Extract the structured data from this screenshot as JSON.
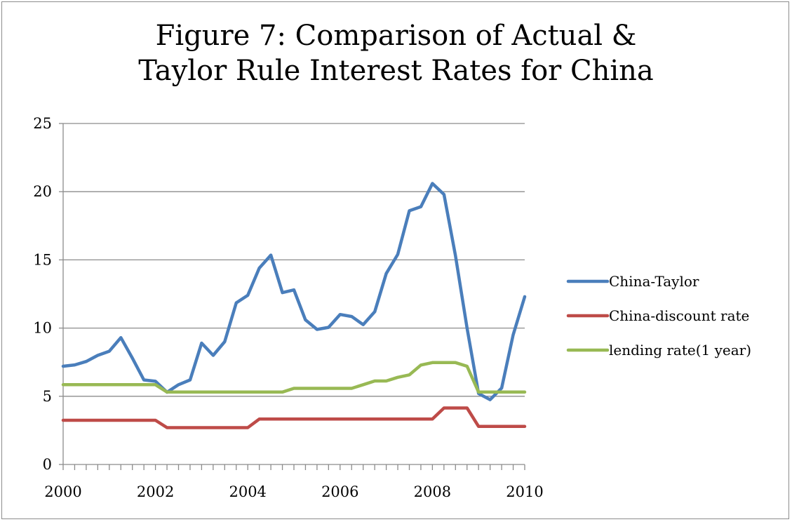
{
  "chart_data": {
    "type": "line",
    "title_line1": "Figure 7: Comparison of Actual &",
    "title_line2": "Taylor Rule Interest Rates for China",
    "xlabel": "",
    "ylabel": "",
    "xlim": [
      2000,
      2010
    ],
    "ylim": [
      0,
      25
    ],
    "x_ticks": [
      "2000",
      "2002",
      "2004",
      "2006",
      "2008",
      "2010"
    ],
    "y_ticks": [
      "0",
      "5",
      "10",
      "15",
      "20",
      "25"
    ],
    "grid": "horizontal",
    "legend_position": "right",
    "x": [
      2000.0,
      2000.25,
      2000.5,
      2000.75,
      2001.0,
      2001.25,
      2001.5,
      2001.75,
      2002.0,
      2002.25,
      2002.5,
      2002.75,
      2003.0,
      2003.25,
      2003.5,
      2003.75,
      2004.0,
      2004.25,
      2004.5,
      2004.75,
      2005.0,
      2005.25,
      2005.5,
      2005.75,
      2006.0,
      2006.25,
      2006.5,
      2006.75,
      2007.0,
      2007.25,
      2007.5,
      2007.75,
      2008.0,
      2008.25,
      2008.5,
      2008.75,
      2009.0,
      2009.25,
      2009.5,
      2009.75,
      2010.0
    ],
    "series": [
      {
        "name": "China-Taylor",
        "color": "#4a7ebb",
        "values": [
          7.2,
          7.3,
          7.55,
          8.0,
          8.3,
          9.3,
          7.8,
          6.2,
          6.1,
          5.3,
          5.85,
          6.2,
          8.9,
          8.0,
          9.0,
          11.85,
          12.4,
          14.4,
          15.35,
          12.6,
          12.8,
          10.6,
          9.9,
          10.05,
          11.0,
          10.85,
          10.25,
          11.2,
          14.0,
          15.4,
          18.6,
          18.9,
          20.6,
          19.8,
          15.3,
          10.0,
          5.2,
          4.75,
          5.6,
          9.5,
          12.3
        ]
      },
      {
        "name": "China-discount rate",
        "color": "#be4b48",
        "values": [
          3.24,
          3.24,
          3.24,
          3.24,
          3.24,
          3.24,
          3.24,
          3.24,
          3.24,
          2.7,
          2.7,
          2.7,
          2.7,
          2.7,
          2.7,
          2.7,
          2.7,
          3.33,
          3.33,
          3.33,
          3.33,
          3.33,
          3.33,
          3.33,
          3.33,
          3.33,
          3.33,
          3.33,
          3.33,
          3.33,
          3.33,
          3.33,
          3.33,
          4.14,
          4.14,
          4.14,
          2.79,
          2.79,
          2.79,
          2.79,
          2.79
        ]
      },
      {
        "name": "lending rate(1 year)",
        "color": "#98b954",
        "values": [
          5.85,
          5.85,
          5.85,
          5.85,
          5.85,
          5.85,
          5.85,
          5.85,
          5.85,
          5.31,
          5.31,
          5.31,
          5.31,
          5.31,
          5.31,
          5.31,
          5.31,
          5.31,
          5.31,
          5.31,
          5.58,
          5.58,
          5.58,
          5.58,
          5.58,
          5.58,
          5.85,
          6.12,
          6.12,
          6.39,
          6.57,
          7.29,
          7.47,
          7.47,
          7.47,
          7.2,
          5.31,
          5.31,
          5.31,
          5.31,
          5.31
        ]
      }
    ]
  }
}
